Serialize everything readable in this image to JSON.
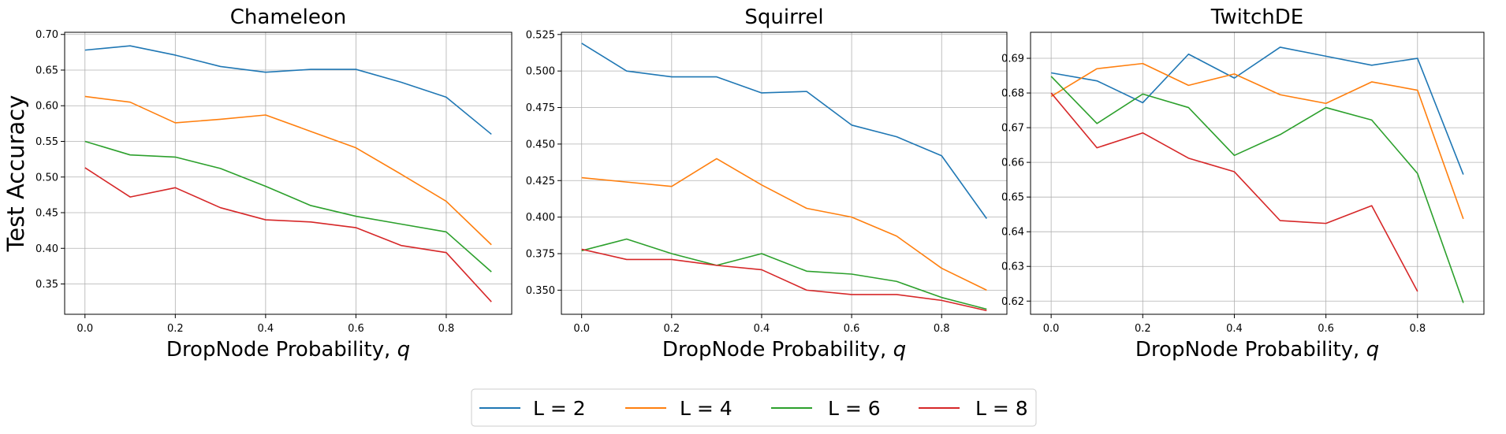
{
  "legend": {
    "placement": "bottom-center",
    "entries": [
      {
        "label": "L = 2",
        "color": "#1f77b4"
      },
      {
        "label": "L = 4",
        "color": "#ff7f0e"
      },
      {
        "label": "L = 6",
        "color": "#2ca02c"
      },
      {
        "label": "L = 8",
        "color": "#d62728"
      }
    ]
  },
  "chart_data": [
    {
      "type": "line",
      "title": "Chameleon",
      "xlabel": "DropNode Probability, ",
      "xlabel_var": "q",
      "ylabel": "Test Accuracy",
      "grid": true,
      "xlim": [
        -0.045,
        0.945
      ],
      "ylim": [
        0.3075,
        0.703
      ],
      "xticks": [
        0.0,
        0.2,
        0.4,
        0.6,
        0.8
      ],
      "xtick_labels": [
        "0.0",
        "0.2",
        "0.4",
        "0.6",
        "0.8"
      ],
      "yticks": [
        0.35,
        0.4,
        0.45,
        0.5,
        0.55,
        0.6,
        0.65,
        0.7
      ],
      "ytick_labels": [
        "0.35",
        "0.40",
        "0.45",
        "0.50",
        "0.55",
        "0.60",
        "0.65",
        "0.70"
      ],
      "x": [
        0.0,
        0.1,
        0.2,
        0.3,
        0.4,
        0.5,
        0.6,
        0.7,
        0.8,
        0.9
      ],
      "series": [
        {
          "name": "L = 2",
          "color": "#1f77b4",
          "values": [
            0.678,
            0.684,
            0.671,
            0.655,
            0.647,
            0.651,
            0.651,
            0.633,
            0.612,
            0.56
          ]
        },
        {
          "name": "L = 4",
          "color": "#ff7f0e",
          "values": [
            0.613,
            0.605,
            0.576,
            0.581,
            0.587,
            0.564,
            0.541,
            0.504,
            0.466,
            0.405
          ]
        },
        {
          "name": "L = 6",
          "color": "#2ca02c",
          "values": [
            0.55,
            0.531,
            0.528,
            0.512,
            0.487,
            0.46,
            0.445,
            0.434,
            0.423,
            0.367
          ]
        },
        {
          "name": "L = 8",
          "color": "#d62728",
          "values": [
            0.513,
            0.472,
            0.485,
            0.457,
            0.44,
            0.437,
            0.429,
            0.404,
            0.394,
            0.325
          ]
        }
      ]
    },
    {
      "type": "line",
      "title": "Squirrel",
      "xlabel": "DropNode Probability, ",
      "xlabel_var": "q",
      "ylabel": "",
      "grid": true,
      "xlim": [
        -0.045,
        0.945
      ],
      "ylim": [
        0.3335,
        0.5265
      ],
      "xticks": [
        0.0,
        0.2,
        0.4,
        0.6,
        0.8
      ],
      "xtick_labels": [
        "0.0",
        "0.2",
        "0.4",
        "0.6",
        "0.8"
      ],
      "yticks": [
        0.35,
        0.375,
        0.4,
        0.425,
        0.45,
        0.475,
        0.5,
        0.525
      ],
      "ytick_labels": [
        "0.350",
        "0.375",
        "0.400",
        "0.425",
        "0.450",
        "0.475",
        "0.500",
        "0.525"
      ],
      "x": [
        0.0,
        0.1,
        0.2,
        0.3,
        0.4,
        0.5,
        0.6,
        0.7,
        0.8,
        0.9
      ],
      "series": [
        {
          "name": "L = 2",
          "color": "#1f77b4",
          "values": [
            0.519,
            0.5,
            0.496,
            0.496,
            0.485,
            0.486,
            0.463,
            0.455,
            0.442,
            0.399
          ]
        },
        {
          "name": "L = 4",
          "color": "#ff7f0e",
          "values": [
            0.427,
            0.424,
            0.421,
            0.44,
            0.422,
            0.406,
            0.4,
            0.387,
            0.365,
            0.35
          ]
        },
        {
          "name": "L = 6",
          "color": "#2ca02c",
          "values": [
            0.377,
            0.385,
            0.375,
            0.367,
            0.375,
            0.363,
            0.361,
            0.356,
            0.345,
            0.337
          ]
        },
        {
          "name": "L = 8",
          "color": "#d62728",
          "values": [
            0.378,
            0.371,
            0.371,
            0.367,
            0.364,
            0.35,
            0.347,
            0.347,
            0.343,
            0.336
          ]
        }
      ]
    },
    {
      "type": "line",
      "title": "TwitchDE",
      "xlabel": "DropNode Probability, ",
      "xlabel_var": "q",
      "ylabel": "",
      "grid": true,
      "xlim": [
        -0.045,
        0.945
      ],
      "ylim": [
        0.6162,
        0.6975
      ],
      "xticks": [
        0.0,
        0.2,
        0.4,
        0.6,
        0.8
      ],
      "xtick_labels": [
        "0.0",
        "0.2",
        "0.4",
        "0.6",
        "0.8"
      ],
      "yticks": [
        0.62,
        0.63,
        0.64,
        0.65,
        0.66,
        0.67,
        0.68,
        0.69
      ],
      "ytick_labels": [
        "0.62",
        "0.63",
        "0.64",
        "0.65",
        "0.66",
        "0.67",
        "0.68",
        "0.69"
      ],
      "x": [
        0.0,
        0.1,
        0.2,
        0.3,
        0.4,
        0.5,
        0.6,
        0.7,
        0.8,
        0.9
      ],
      "series": [
        {
          "name": "L = 2",
          "color": "#1f77b4",
          "x": [
            0.0,
            0.1,
            0.2,
            0.3,
            0.4,
            0.5,
            0.6,
            0.7,
            0.8,
            0.9
          ],
          "values": [
            0.6858,
            0.6835,
            0.6772,
            0.6912,
            0.6843,
            0.6932,
            0.6906,
            0.688,
            0.69,
            0.6565
          ]
        },
        {
          "name": "L = 4",
          "color": "#ff7f0e",
          "x": [
            0.0,
            0.1,
            0.2,
            0.3,
            0.4,
            0.5,
            0.6,
            0.7,
            0.8,
            0.9
          ],
          "values": [
            0.679,
            0.687,
            0.6885,
            0.6822,
            0.6855,
            0.6795,
            0.677,
            0.6832,
            0.6808,
            0.6437
          ]
        },
        {
          "name": "L = 6",
          "color": "#2ca02c",
          "x": [
            0.0,
            0.1,
            0.2,
            0.3,
            0.4,
            0.5,
            0.6,
            0.7,
            0.8,
            0.9
          ],
          "values": [
            0.6848,
            0.6712,
            0.6797,
            0.6758,
            0.662,
            0.668,
            0.6758,
            0.6722,
            0.6568,
            0.6195
          ]
        },
        {
          "name": "L = 8",
          "color": "#d62728",
          "x": [
            0.0,
            0.1,
            0.2,
            0.3,
            0.4,
            0.5,
            0.6,
            0.7,
            0.8
          ],
          "values": [
            0.68,
            0.6642,
            0.6685,
            0.6612,
            0.6573,
            0.6432,
            0.6424,
            0.6475,
            0.6228
          ]
        }
      ]
    }
  ]
}
